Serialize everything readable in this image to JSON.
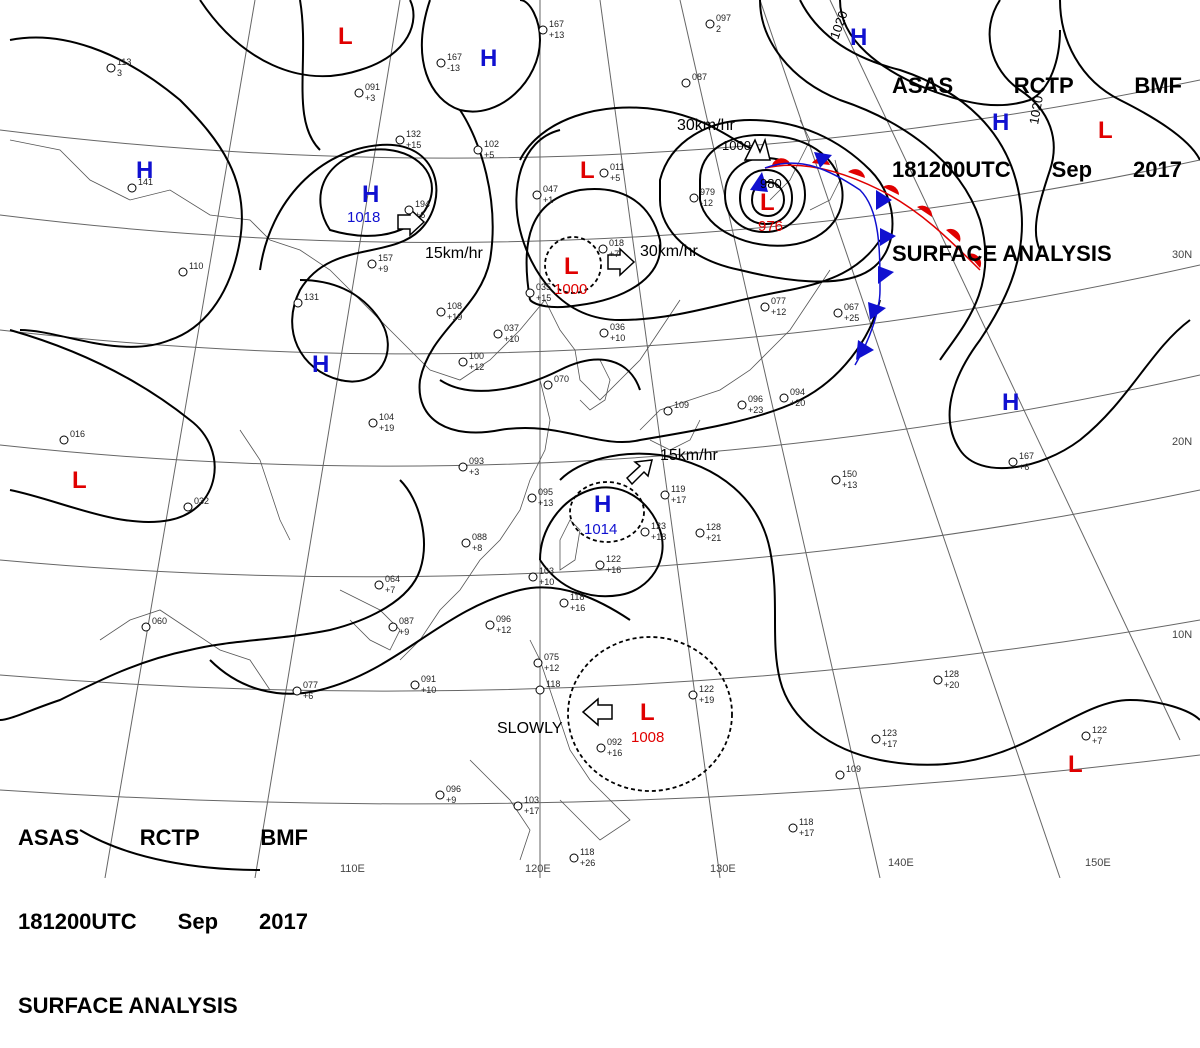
{
  "header": {
    "line1": [
      "ASAS",
      "RCTP",
      "BMF"
    ],
    "line2": [
      "181200UTC",
      "Sep",
      "2017"
    ],
    "line3": "SURFACE ANALYSIS"
  },
  "grid_labels": {
    "lat": [
      "30N",
      "20N",
      "10N"
    ],
    "lon": [
      "110E",
      "120E",
      "130E",
      "140E",
      "150E"
    ]
  },
  "pressure_systems": [
    {
      "type": "L",
      "value": ""
    },
    {
      "type": "H",
      "value": ""
    },
    {
      "type": "H",
      "value": ""
    },
    {
      "type": "H",
      "value": "1018"
    },
    {
      "type": "H",
      "value": ""
    },
    {
      "type": "L",
      "value": ""
    },
    {
      "type": "L",
      "value": "1000"
    },
    {
      "type": "L",
      "value": "976"
    },
    {
      "type": "H",
      "value": ""
    },
    {
      "type": "H",
      "value": ""
    },
    {
      "type": "L",
      "value": ""
    },
    {
      "type": "L",
      "value": ""
    },
    {
      "type": "H",
      "value": ""
    },
    {
      "type": "H",
      "value": "1014"
    },
    {
      "type": "L",
      "value": "1008"
    },
    {
      "type": "L",
      "value": ""
    }
  ],
  "movements": [
    "15km/hr",
    "30km/hr",
    "30km/hr",
    "15km/hr",
    "SLOWLY"
  ],
  "isobar_labels": [
    "1000",
    "1020",
    "1020",
    "980"
  ],
  "station_plots": [
    {
      "t": "167",
      "v": "+13"
    },
    {
      "t": "113",
      "v": "3"
    },
    {
      "t": "091",
      "v": "+3"
    },
    {
      "t": "167",
      "v": "-13"
    },
    {
      "t": "087",
      "v": ""
    },
    {
      "t": "097",
      "v": "2"
    },
    {
      "t": "132",
      "v": "+15"
    },
    {
      "t": "102",
      "v": "+5"
    },
    {
      "t": "011",
      "v": "+5"
    },
    {
      "t": "979",
      "v": "-12"
    },
    {
      "t": "047",
      "v": "+1"
    },
    {
      "t": "194",
      "v": "+6"
    },
    {
      "t": "141",
      "v": ""
    },
    {
      "t": "157",
      "v": "+9"
    },
    {
      "t": "018",
      "v": "+7"
    },
    {
      "t": "110",
      "v": ""
    },
    {
      "t": "131",
      "v": ""
    },
    {
      "t": "108",
      "v": "+19"
    },
    {
      "t": "035",
      "v": "+15"
    },
    {
      "t": "037",
      "v": "+10"
    },
    {
      "t": "036",
      "v": "+10"
    },
    {
      "t": "077",
      "v": "+12"
    },
    {
      "t": "067",
      "v": "+25"
    },
    {
      "t": "100",
      "v": "+12"
    },
    {
      "t": "070",
      "v": ""
    },
    {
      "t": "016",
      "v": ""
    },
    {
      "t": "104",
      "v": "+19"
    },
    {
      "t": "109",
      "v": ""
    },
    {
      "t": "096",
      "v": "+23"
    },
    {
      "t": "094",
      "v": "+20"
    },
    {
      "t": "032",
      "v": ""
    },
    {
      "t": "093",
      "v": "+3"
    },
    {
      "t": "095",
      "v": "+13"
    },
    {
      "t": "119",
      "v": "+17"
    },
    {
      "t": "150",
      "v": "+13"
    },
    {
      "t": "167",
      "v": "+6"
    },
    {
      "t": "088",
      "v": "+8"
    },
    {
      "t": "123",
      "v": "+18"
    },
    {
      "t": "128",
      "v": "+21"
    },
    {
      "t": "064",
      "v": "+7"
    },
    {
      "t": "103",
      "v": "+10"
    },
    {
      "t": "122",
      "v": "+16"
    },
    {
      "t": "118",
      "v": "+16"
    },
    {
      "t": "096",
      "v": "+12"
    },
    {
      "t": "087",
      "v": "+9"
    },
    {
      "t": "060",
      "v": ""
    },
    {
      "t": "077",
      "v": "+6"
    },
    {
      "t": "091",
      "v": "+10"
    },
    {
      "t": "075",
      "v": "+12"
    },
    {
      "t": "122",
      "v": "+19"
    },
    {
      "t": "128",
      "v": "+20"
    },
    {
      "t": "092",
      "v": "+16"
    },
    {
      "t": "123",
      "v": "+17"
    },
    {
      "t": "122",
      "v": "+7"
    },
    {
      "t": "118",
      "v": ""
    },
    {
      "t": "096",
      "v": "+9"
    },
    {
      "t": "103",
      "v": "+17"
    },
    {
      "t": "118",
      "v": "+17"
    },
    {
      "t": "118",
      "v": "+26"
    },
    {
      "t": "109",
      "v": ""
    }
  ],
  "colors": {
    "high": "#1010d0",
    "low": "#e00000",
    "warm_front": "#e00000",
    "cold_front": "#1010d0",
    "isobar": "#000000",
    "coast": "#555555",
    "grid": "#666666"
  }
}
